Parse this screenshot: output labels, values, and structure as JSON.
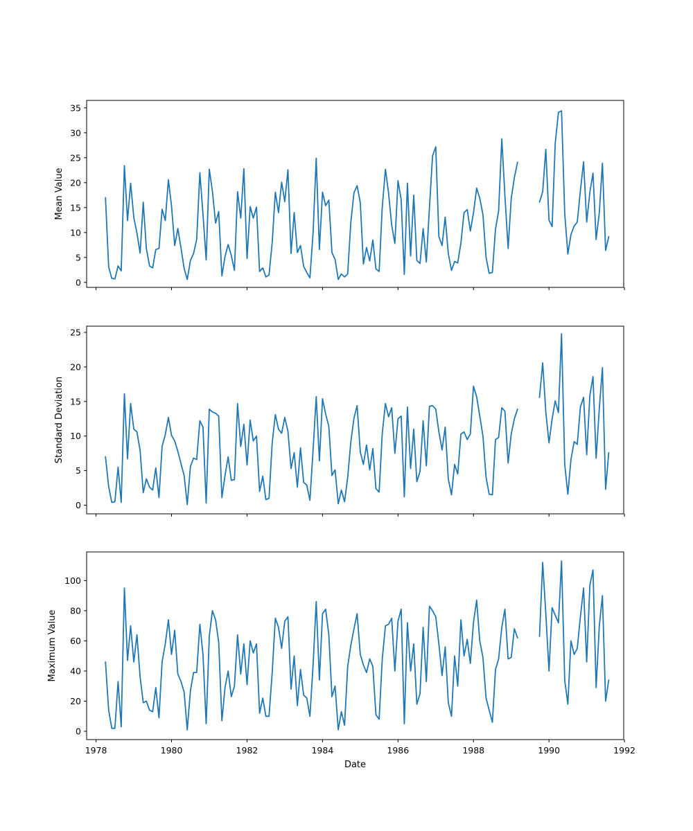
{
  "colors": {
    "series": "#1f77b4",
    "axes": "#000000",
    "background": "#ffffff"
  },
  "chart_data": [
    {
      "type": "line",
      "ylabel": "Mean Value",
      "xlabel": "",
      "show_x_tick_labels": false,
      "ylim": [
        -1.0,
        36.5
      ],
      "yticks": [
        0,
        5,
        10,
        15,
        20,
        25,
        30,
        35
      ],
      "xlim": [
        1977.75,
        1991.98
      ],
      "xticks": [
        1978,
        1980,
        1982,
        1984,
        1986,
        1988,
        1990,
        1992
      ],
      "grid": false,
      "series": [
        {
          "start": 1978.25,
          "step": 0.0833333,
          "values": [
            17.0,
            3.1,
            0.8,
            0.7,
            3.3,
            2.3,
            23.4,
            12.4,
            19.9,
            13.0,
            9.9,
            5.9,
            16.1,
            6.8,
            3.3,
            2.9,
            6.6,
            6.8,
            14.7,
            12.4,
            20.6,
            15.3,
            7.4,
            10.8,
            6.9,
            2.8,
            0.6,
            4.4,
            5.8,
            8.6,
            22.0,
            13.7,
            4.5,
            22.7,
            18.3,
            11.9,
            14.2,
            1.3,
            5.2,
            7.6,
            5.4,
            2.4,
            18.2,
            12.9,
            22.8,
            4.8,
            15.2,
            12.9,
            15.1,
            2.2,
            2.9,
            1.1,
            1.5,
            8.0,
            18.1,
            14.0,
            20.1,
            16.2,
            22.6,
            5.8,
            14.0,
            6.0,
            7.4,
            3.2,
            2.0,
            0.9,
            10.0,
            24.9,
            6.6,
            18.1,
            15.4,
            16.5,
            6.0,
            4.6,
            0.6,
            1.7,
            1.1,
            1.7,
            12.0,
            18.0,
            19.4,
            16.0,
            3.7,
            7.0,
            4.3,
            8.5,
            2.7,
            2.2,
            15.1,
            22.7,
            17.9,
            11.5,
            7.8,
            20.4,
            16.6,
            1.6,
            19.9,
            5.3,
            17.5,
            4.4,
            3.8,
            10.8,
            4.1,
            15.0,
            25.4,
            27.2,
            9.2,
            7.4,
            13.1,
            5.8,
            2.4,
            4.2,
            3.9,
            7.9,
            14.0,
            14.6,
            10.3,
            13.9,
            18.9,
            16.9,
            13.6,
            5.0,
            1.8,
            2.0,
            10.7,
            14.3,
            28.8,
            17.4,
            6.8,
            16.8,
            21.0,
            24.1,
            null,
            null,
            null,
            null,
            null,
            null,
            16.1,
            18.2,
            26.7,
            12.5,
            11.2,
            27.9,
            34.1,
            34.4,
            13.8,
            5.7,
            9.6,
            11.3,
            12.1,
            18.4,
            24.2,
            12.1,
            18.1,
            21.9,
            8.6,
            14.0,
            23.9,
            6.4,
            9.2
          ]
        }
      ]
    },
    {
      "type": "line",
      "ylabel": "Standard Deviation",
      "xlabel": "",
      "show_x_tick_labels": false,
      "ylim": [
        -1.25,
        25.9
      ],
      "yticks": [
        0,
        5,
        10,
        15,
        20,
        25
      ],
      "xlim": [
        1977.75,
        1991.98
      ],
      "xticks": [
        1978,
        1980,
        1982,
        1984,
        1986,
        1988,
        1990,
        1992
      ],
      "grid": false,
      "series": [
        {
          "start": 1978.25,
          "step": 0.0833333,
          "values": [
            7.0,
            2.7,
            0.4,
            0.5,
            5.5,
            0.4,
            16.1,
            6.7,
            14.7,
            11.0,
            10.6,
            7.9,
            1.8,
            3.8,
            2.6,
            2.2,
            5.4,
            1.1,
            8.5,
            10.2,
            12.7,
            10.1,
            9.3,
            7.8,
            6.0,
            4.3,
            0.1,
            5.6,
            6.8,
            6.6,
            12.2,
            11.3,
            0.3,
            13.9,
            13.5,
            13.3,
            12.9,
            1.1,
            4.3,
            7.0,
            3.6,
            3.7,
            14.7,
            8.5,
            11.7,
            5.8,
            12.3,
            9.3,
            10.0,
            2.0,
            4.2,
            0.8,
            1.0,
            9.0,
            13.1,
            11.0,
            10.4,
            12.7,
            10.7,
            5.3,
            7.6,
            2.6,
            8.3,
            3.3,
            2.9,
            0.7,
            8.0,
            15.7,
            6.4,
            15.4,
            13.2,
            11.4,
            4.3,
            5.1,
            0.2,
            2.2,
            0.5,
            4.0,
            9.1,
            12.6,
            14.4,
            7.7,
            5.9,
            8.7,
            5.1,
            8.2,
            2.4,
            1.9,
            10.4,
            14.7,
            12.8,
            14.1,
            7.5,
            12.5,
            12.9,
            1.2,
            14.2,
            5.3,
            11.0,
            3.4,
            4.9,
            12.2,
            5.7,
            14.3,
            14.4,
            13.9,
            10.6,
            8.0,
            11.3,
            3.8,
            1.5,
            5.9,
            4.5,
            10.3,
            10.6,
            9.5,
            10.3,
            17.2,
            15.7,
            12.9,
            10.0,
            4.0,
            1.6,
            1.5,
            9.5,
            9.8,
            14.1,
            13.6,
            6.1,
            10.3,
            12.5,
            13.9,
            null,
            null,
            null,
            null,
            null,
            null,
            15.6,
            20.6,
            13.5,
            9.0,
            12.5,
            15.1,
            13.4,
            24.8,
            5.9,
            1.6,
            6.6,
            9.2,
            8.8,
            14.2,
            15.6,
            7.3,
            15.9,
            18.6,
            6.8,
            14.0,
            19.9,
            2.3,
            7.6
          ]
        }
      ]
    },
    {
      "type": "line",
      "ylabel": "Maximum Value",
      "xlabel": "Date",
      "show_x_tick_labels": true,
      "ylim": [
        -5.5,
        119
      ],
      "yticks": [
        0,
        20,
        40,
        60,
        80,
        100
      ],
      "xlim": [
        1977.75,
        1991.98
      ],
      "xticks": [
        1978,
        1980,
        1982,
        1984,
        1986,
        1988,
        1990,
        1992
      ],
      "grid": false,
      "series": [
        {
          "start": 1978.25,
          "step": 0.0833333,
          "values": [
            46,
            14,
            2,
            2,
            33,
            3,
            95,
            47,
            70,
            46,
            64,
            36,
            19,
            20,
            14,
            13,
            29,
            9,
            46,
            58,
            74,
            51,
            67,
            38,
            33,
            26,
            1,
            27,
            39,
            39,
            71,
            51,
            5,
            63,
            80,
            74,
            59,
            7,
            29,
            40,
            23,
            30,
            64,
            38,
            58,
            31,
            60,
            52,
            58,
            12,
            22,
            10,
            10,
            39,
            75,
            69,
            55,
            73,
            76,
            28,
            50,
            17,
            41,
            24,
            22,
            10,
            44,
            86,
            34,
            78,
            81,
            64,
            23,
            30,
            1,
            13,
            4,
            43,
            57,
            68,
            78,
            51,
            44,
            39,
            48,
            43,
            11,
            8,
            48,
            70,
            71,
            75,
            40,
            73,
            81,
            5,
            72,
            40,
            58,
            18,
            25,
            69,
            33,
            83,
            80,
            76,
            58,
            37,
            56,
            19,
            10,
            50,
            30,
            74,
            50,
            61,
            45,
            72,
            87,
            60,
            49,
            22,
            14,
            6,
            41,
            48,
            69,
            81,
            48,
            49,
            68,
            62,
            null,
            null,
            null,
            null,
            null,
            null,
            63,
            112,
            78,
            40,
            82,
            77,
            72,
            113,
            34,
            18,
            60,
            51,
            55,
            76,
            95,
            46,
            97,
            107,
            29,
            70,
            90,
            20,
            34
          ]
        }
      ]
    }
  ]
}
